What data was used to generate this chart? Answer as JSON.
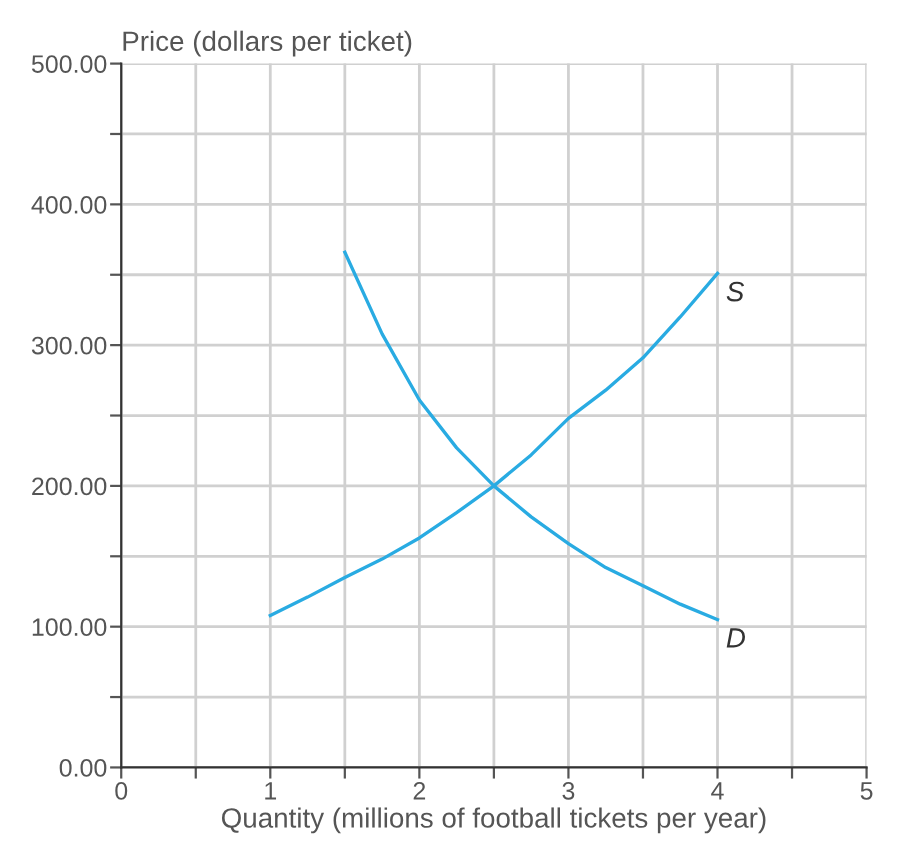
{
  "chart_data": {
    "type": "line",
    "xlabel": "Quantity (millions of football tickets per year)",
    "ylabel": "Price (dollars per ticket)",
    "series": [
      {
        "name": "S",
        "color": "#29abe2",
        "x": [
          1,
          1.25,
          1.5,
          1.75,
          2,
          2.25,
          2.5,
          2.75,
          3,
          3.25,
          3.5,
          3.75,
          4
        ],
        "values": [
          108,
          121,
          135,
          148,
          163,
          181,
          200,
          222,
          248,
          268,
          291,
          320,
          351
        ]
      },
      {
        "name": "D",
        "color": "#29abe2",
        "x": [
          1.5,
          1.75,
          2,
          2.25,
          2.5,
          2.75,
          3,
          3.25,
          3.5,
          3.75,
          4
        ],
        "values": [
          366,
          308,
          261,
          227,
          200,
          178,
          159,
          142,
          129,
          116,
          105
        ]
      }
    ],
    "xlim": [
      0,
      5
    ],
    "ylim": [
      0,
      500
    ],
    "xticks": [
      0,
      {
        "value": 0.5,
        "label": null
      },
      1,
      {
        "value": 1.5,
        "label": null
      },
      2,
      {
        "value": 2.5,
        "label": null
      },
      3,
      {
        "value": 3.5,
        "label": null
      },
      4,
      {
        "value": 4.5,
        "label": null
      },
      5
    ],
    "yticks": [
      {
        "value": 0,
        "label": "0.00"
      },
      {
        "value": 50,
        "label": null
      },
      {
        "value": 100,
        "label": "100.00"
      },
      {
        "value": 150,
        "label": null
      },
      {
        "value": 200,
        "label": "200.00"
      },
      {
        "value": 250,
        "label": null
      },
      {
        "value": 300,
        "label": "300.00"
      },
      {
        "value": 350,
        "label": null
      },
      {
        "value": 400,
        "label": "400.00"
      },
      {
        "value": 450,
        "label": null
      },
      {
        "value": 500,
        "label": "500.00"
      }
    ],
    "grid": true,
    "legend": false,
    "marker": "none",
    "line_style": "solid"
  }
}
